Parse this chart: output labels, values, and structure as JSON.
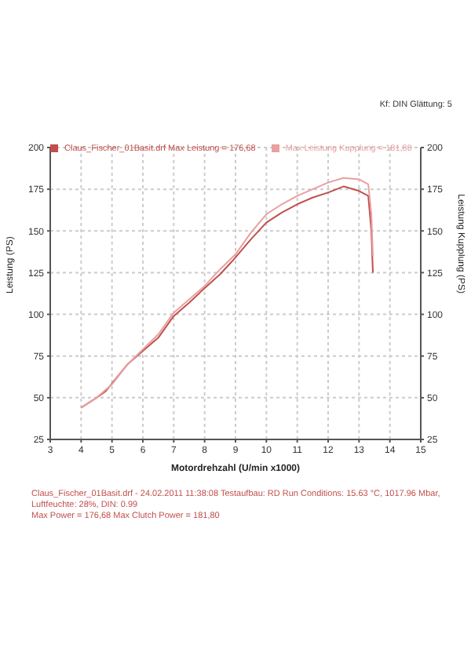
{
  "chart_data": {
    "type": "line",
    "xlabel": "Motordrehzahl (U/min x1000)",
    "ylabel": "Leistung (PS)",
    "y2label": "Leistung Kupplung (PS)",
    "series": [
      {
        "name": "Claus_Fischer_01Basit.drf Max Leistung = 176,68",
        "color": "#c0504d",
        "x": [
          4.0,
          4.5,
          4.8,
          5.5,
          6.0,
          6.5,
          7.0,
          7.5,
          7.9,
          8.5,
          8.9,
          9.5,
          10.0,
          10.5,
          11.0,
          11.5,
          12.0,
          12.5,
          13.0,
          13.3,
          13.4,
          13.45
        ],
        "values": [
          44,
          50,
          54,
          70,
          78,
          86,
          99,
          107,
          114,
          124,
          132,
          145,
          155,
          161,
          166,
          170,
          173,
          176.68,
          174,
          171,
          150,
          125
        ]
      },
      {
        "name": "Max Leistung Kupplung = 181,80",
        "color": "#e8a0a0",
        "x": [
          4.0,
          4.5,
          5.0,
          5.5,
          6.0,
          6.5,
          7.0,
          7.5,
          8.0,
          8.5,
          9.0,
          9.5,
          10.0,
          10.5,
          11.0,
          11.5,
          12.0,
          12.5,
          13.0,
          13.3,
          13.4,
          13.45
        ],
        "values": [
          44,
          50,
          58,
          70,
          79,
          88,
          101,
          109,
          117,
          127,
          136,
          149,
          160,
          166,
          171,
          175,
          179,
          181.8,
          181,
          178,
          160,
          135
        ]
      }
    ],
    "xlim": [
      3,
      15
    ],
    "xticks": [
      3,
      4,
      5,
      6,
      7,
      8,
      9,
      10,
      11,
      12,
      13,
      14,
      15
    ],
    "ylim": [
      25,
      200
    ],
    "yticks": [
      25,
      50,
      75,
      100,
      125,
      150,
      175,
      200
    ],
    "y2lim": [
      25,
      200
    ],
    "y2ticks": [
      25,
      50,
      75,
      100,
      125,
      150,
      175,
      200
    ],
    "grid": true,
    "legend": "top left",
    "marker": "none",
    "line_style": "solid",
    "annotations": [
      "Kf: DIN Glättung: 5",
      "Claus_Fischer_01Basit.drf - 24.02.2011 11:38:08 Testaufbau: RD Run Conditions: 15.63 °C, 1017.96 Mbar, Luftfeuchte: 28%, DIN: 0.99",
      "Max Power = 176,68 Max Clutch Power = 181,80"
    ]
  }
}
